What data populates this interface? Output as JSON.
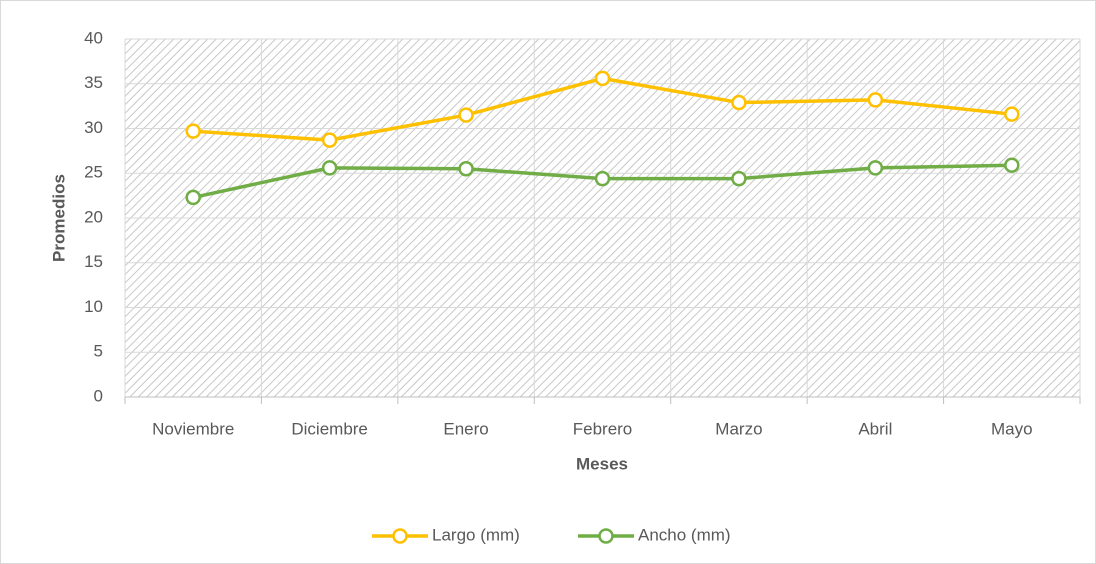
{
  "chart_data": {
    "type": "line",
    "x_label": "Meses",
    "y_label": "Promedios",
    "categories": [
      "Noviembre",
      "Diciembre",
      "Enero",
      "Febrero",
      "Marzo",
      "Abril",
      "Mayo"
    ],
    "series": [
      {
        "name": "Largo (mm)",
        "color": "#FFC000",
        "values": [
          29.7,
          28.7,
          31.5,
          35.6,
          32.9,
          33.2,
          31.6
        ]
      },
      {
        "name": "Ancho (mm)",
        "color": "#70AD47",
        "values": [
          22.3,
          25.6,
          25.5,
          24.4,
          24.4,
          25.6,
          25.9
        ]
      }
    ],
    "ylim": [
      0,
      40
    ],
    "yticks": [
      0,
      5,
      10,
      15,
      20,
      25,
      30,
      35,
      40
    ],
    "grid": true,
    "legend": "bottom"
  }
}
